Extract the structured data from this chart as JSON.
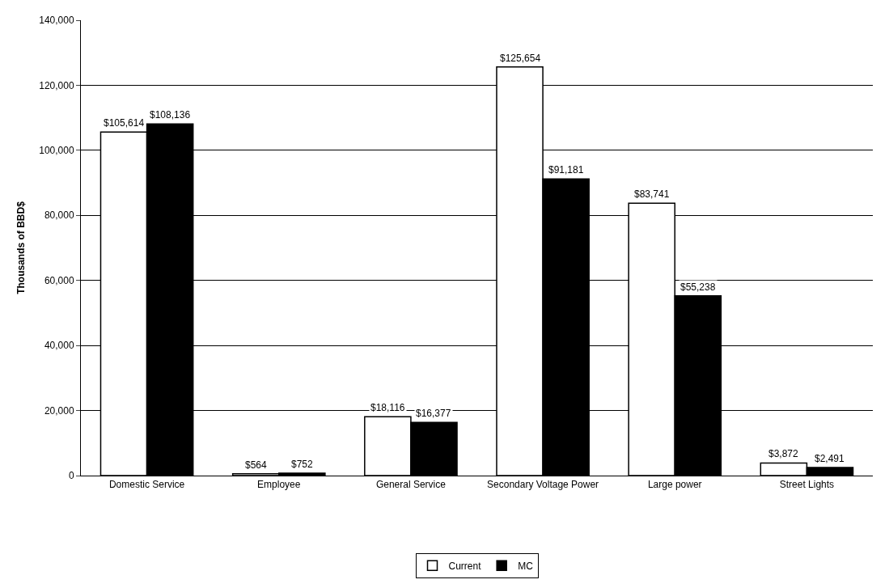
{
  "chart_data": {
    "type": "bar",
    "ylabel": "Thousands of BBD$",
    "categories": [
      "Domestic Service",
      "Employee",
      "General Service",
      "Secondary Voltage Power",
      "Large power",
      "Street Lights"
    ],
    "series": [
      {
        "name": "Current",
        "color": "#ffffff",
        "values": [
          105614,
          564,
          18116,
          125654,
          83741,
          3872
        ],
        "value_labels": [
          "$105,614",
          "$564",
          "$18,116",
          "$125,654",
          "$83,741",
          "$3,872"
        ]
      },
      {
        "name": "MC",
        "color": "#000000",
        "values": [
          108136,
          752,
          16377,
          91181,
          55238,
          2491
        ],
        "value_labels": [
          "$108,136",
          "$752",
          "$16,377",
          "$91,181",
          "$55,238",
          "$2,491"
        ]
      }
    ],
    "ylim": [
      0,
      140000
    ],
    "yticks": [
      {
        "value": 0,
        "label": "0"
      },
      {
        "value": 20000,
        "label": "20,000"
      },
      {
        "value": 40000,
        "label": "40,000"
      },
      {
        "value": 60000,
        "label": "60,000"
      },
      {
        "value": 80000,
        "label": "80,000"
      },
      {
        "value": 100000,
        "label": "100,000"
      },
      {
        "value": 120000,
        "label": "120,000"
      },
      {
        "value": 140000,
        "label": "140,000"
      }
    ],
    "grid": "y",
    "legend": "bottom"
  }
}
